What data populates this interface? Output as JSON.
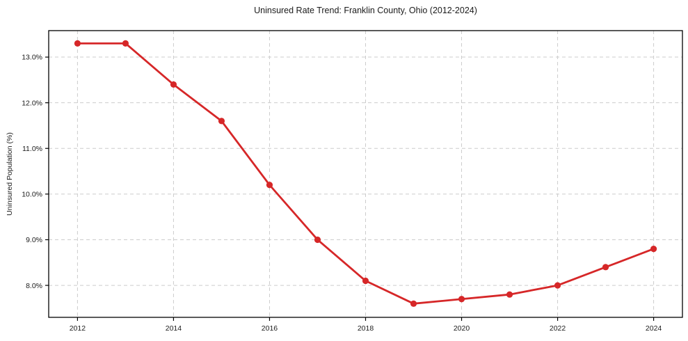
{
  "chart_data": {
    "type": "line",
    "title": "Uninsured Rate Trend: Franklin County, Ohio (2012-2024)",
    "xlabel": "",
    "ylabel": "Uninsured Population (%)",
    "x": [
      2012,
      2013,
      2014,
      2015,
      2016,
      2017,
      2018,
      2019,
      2020,
      2021,
      2022,
      2023,
      2024
    ],
    "values": [
      13.3,
      13.3,
      12.4,
      11.6,
      10.2,
      9.0,
      8.1,
      7.6,
      7.7,
      7.8,
      8.0,
      8.4,
      8.8
    ],
    "xticks": {
      "values": [
        2012,
        2014,
        2016,
        2018,
        2020,
        2022,
        2024
      ],
      "labels": [
        "2012",
        "2014",
        "2016",
        "2018",
        "2020",
        "2022",
        "2024"
      ]
    },
    "yticks": {
      "values": [
        8,
        9,
        10,
        11,
        12,
        13
      ],
      "labels": [
        "8.0%",
        "9.0%",
        "10.0%",
        "11.0%",
        "12.0%",
        "13.0%"
      ]
    },
    "xlim": [
      2011.4,
      2024.6
    ],
    "ylim": [
      7.3,
      13.58
    ],
    "grid": true,
    "legend": false,
    "colors": {
      "line": "#d62728",
      "marker": "#d62728",
      "grid": "#cccccc",
      "axis": "#000000",
      "text": "#1a1a1a",
      "background": "#ffffff"
    }
  }
}
